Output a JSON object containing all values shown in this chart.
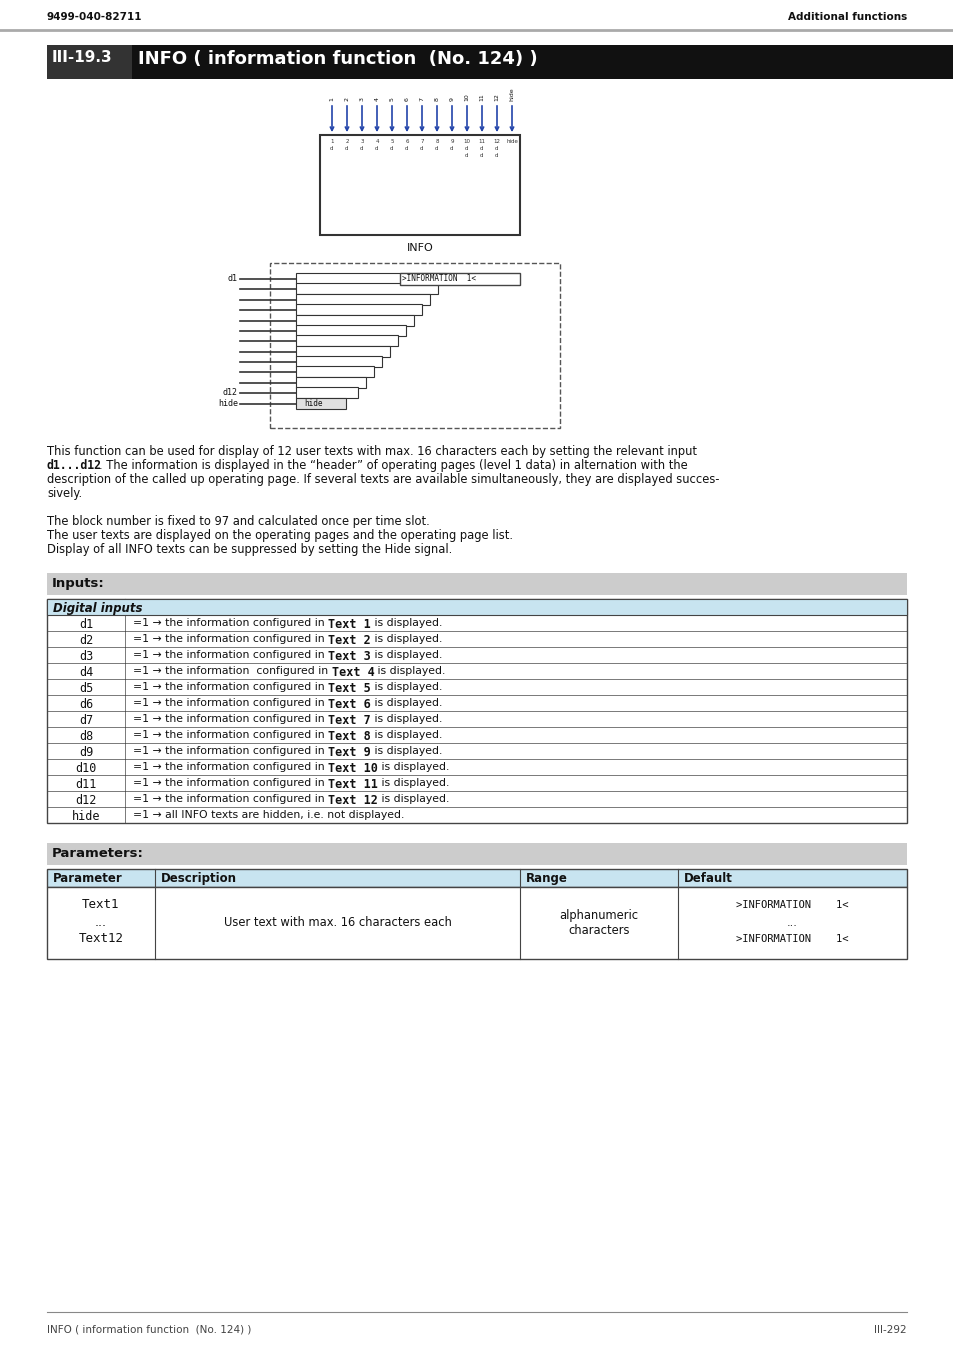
{
  "header_left": "9499-040-82711",
  "header_right": "Additional functions",
  "section_title": "III-19.3",
  "section_title_text": "INFO ( information function  (No. 124) )",
  "description_para1_normal": "This function can be used for display of 12 user texts with max. 16 characters each by setting the relevant input",
  "description_para1_mono": "d1...d12",
  "description_para1_rest": ". The information is displayed in the “header” of operating pages (level 1 data) in alternation with the",
  "description_para1_line3": "description of the called up operating page. If several texts are available simultaneously, they are displayed succes-",
  "description_para1_line4": "sively.",
  "description_para2_lines": [
    "The block number is fixed to 97 and calculated once per time slot.",
    "The user texts are displayed on the operating pages and the operating page list.",
    "Display of all INFO texts can be suppressed by setting the Hide signal."
  ],
  "inputs_label": "Inputs:",
  "digital_inputs_header": "Digital inputs",
  "digital_inputs": [
    {
      "name": "d1",
      "prefix": "=1 → the information configured in ",
      "bold": "Text 1",
      "suffix": " is displayed."
    },
    {
      "name": "d2",
      "prefix": "=1 → the information configured in ",
      "bold": "Text 2",
      "suffix": " is displayed."
    },
    {
      "name": "d3",
      "prefix": "=1 → the information configured in ",
      "bold": "Text 3",
      "suffix": " is displayed."
    },
    {
      "name": "d4",
      "prefix": "=1 → the information  configured in ",
      "bold": "Text 4",
      "suffix": " is displayed."
    },
    {
      "name": "d5",
      "prefix": "=1 → the information configured in ",
      "bold": "Text 5",
      "suffix": " is displayed."
    },
    {
      "name": "d6",
      "prefix": "=1 → the information configured in ",
      "bold": "Text 6",
      "suffix": " is displayed."
    },
    {
      "name": "d7",
      "prefix": "=1 → the information configured in ",
      "bold": "Text 7",
      "suffix": " is displayed."
    },
    {
      "name": "d8",
      "prefix": "=1 → the information configured in ",
      "bold": "Text 8",
      "suffix": " is displayed."
    },
    {
      "name": "d9",
      "prefix": "=1 → the information configured in ",
      "bold": "Text 9",
      "suffix": " is displayed."
    },
    {
      "name": "d10",
      "prefix": "=1 → the information configured in ",
      "bold": "Text 10",
      "suffix": " is displayed."
    },
    {
      "name": "d11",
      "prefix": "=1 → the information configured in ",
      "bold": "Text 11",
      "suffix": " is displayed."
    },
    {
      "name": "d12",
      "prefix": "=1 → the information configured in ",
      "bold": "Text 12",
      "suffix": " is displayed."
    },
    {
      "name": "hide",
      "prefix": "=1 → all INFO texts are hidden, i.e. not displayed.",
      "bold": "",
      "suffix": ""
    }
  ],
  "parameters_label": "Parameters:",
  "param_headers": [
    "Parameter",
    "Description",
    "Range",
    "Default"
  ],
  "param_top": "Text1",
  "param_mid": "...",
  "param_bot": "Text12",
  "param_desc": "User text with max. 16 characters each",
  "param_range1": "alphanumeric",
  "param_range2": "characters",
  "param_default1": ">INFORMATION    1<",
  "param_default2": "...",
  "param_default3": ">INFORMATION    1<",
  "footer_left": "INFO ( information function  (No. 124) )",
  "footer_right": "III-292",
  "bg_color": "#ffffff",
  "gray_bar_color": "#aaaaaa",
  "black_bar_color": "#111111",
  "white_text": "#ffffff",
  "section_num_bg": "#333333",
  "table_hdr_bg": "#c8e4f0",
  "table_border": "#444444",
  "section_bg": "#cccccc",
  "body_text": "#111111"
}
